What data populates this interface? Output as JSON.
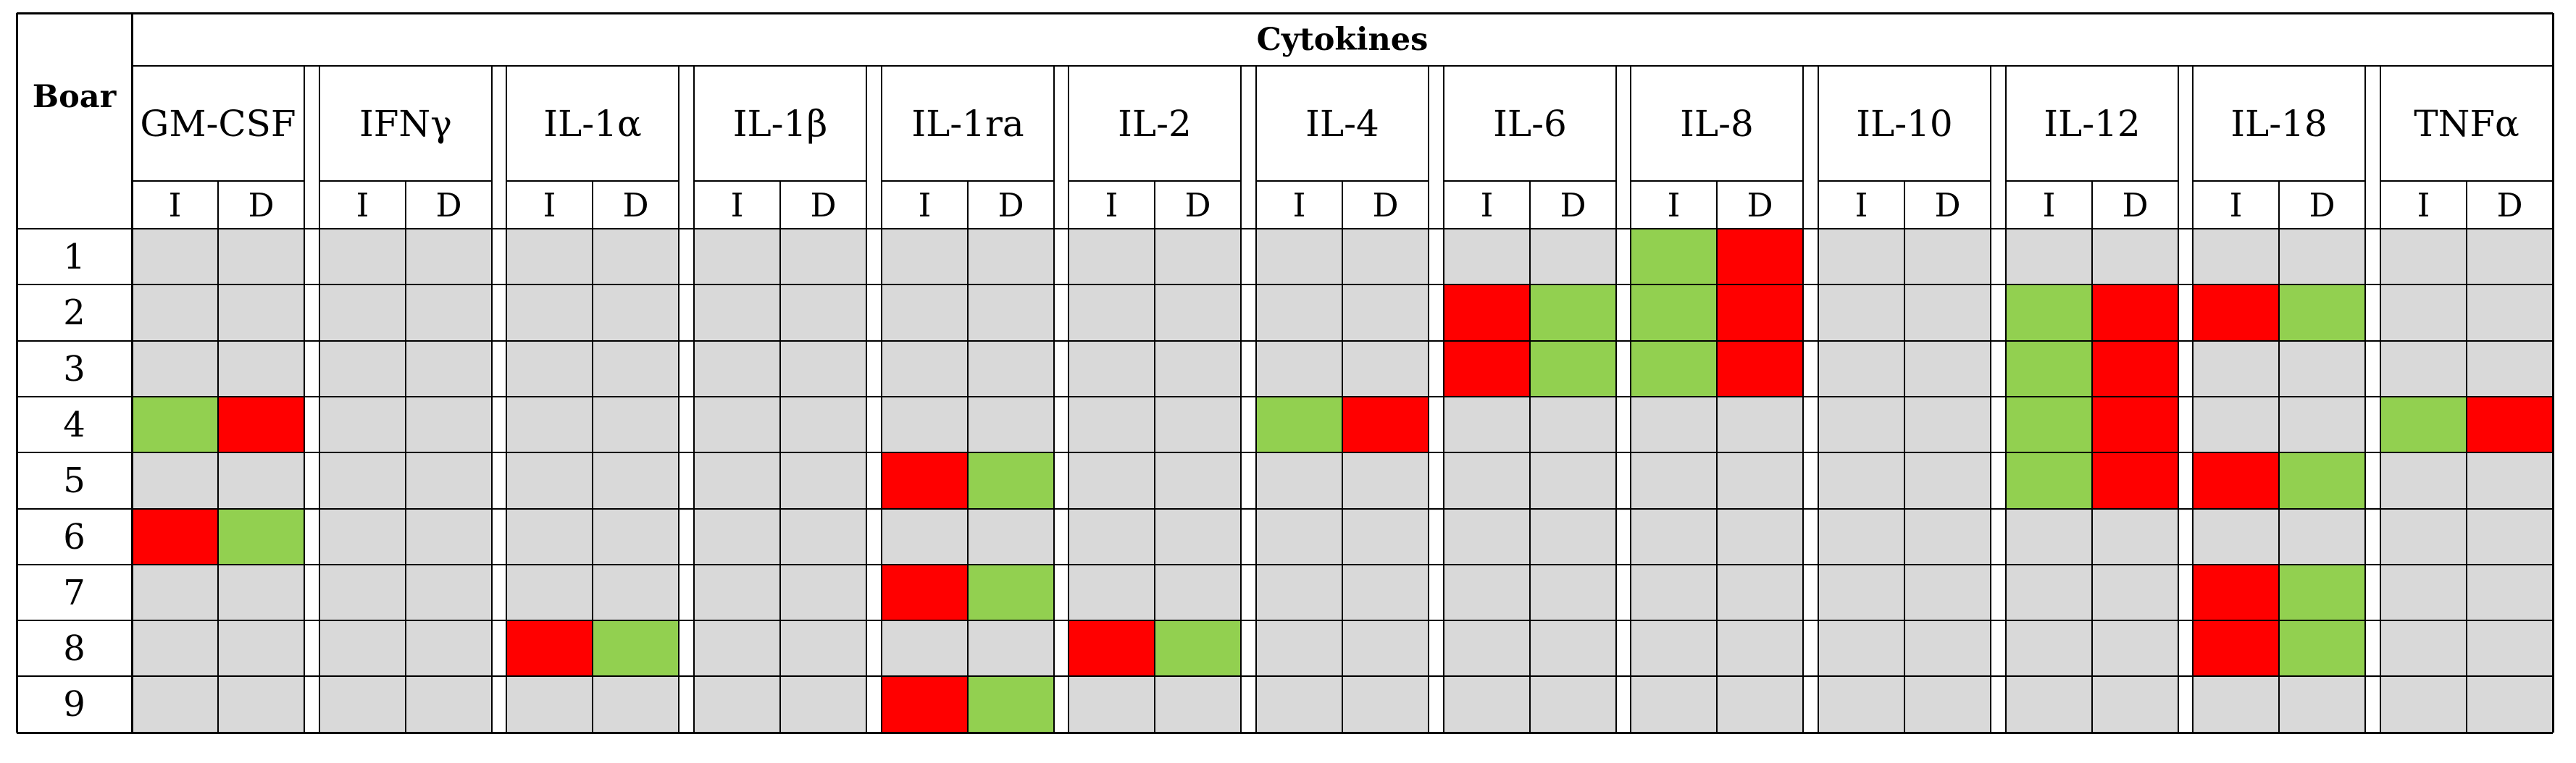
{
  "table": {
    "group_header": "Cytokines",
    "row_header": "Boar",
    "sub_headers": [
      "I",
      "D"
    ],
    "cytokines": [
      "GM-CSF",
      "IFNγ",
      "IL-1α",
      "IL-1β",
      "IL-1ra",
      "IL-2",
      "IL-4",
      "IL-6",
      "IL-8",
      "IL-10",
      "IL-12",
      "IL-18",
      "TNFα"
    ],
    "boars": [
      "1",
      "2",
      "3",
      "4",
      "5",
      "6",
      "7",
      "8",
      "9"
    ],
    "cell_codes": {
      "0": "no change",
      "1": "increase (green)",
      "2": "decrease (red)"
    },
    "colors": {
      "0": "#d9d9d9",
      "1": "#92d050",
      "2": "#ff0000",
      "1b": "#7fc241"
    },
    "cells": [
      [
        0,
        0,
        0,
        0,
        0,
        0,
        0,
        0,
        0,
        0,
        0,
        0,
        0,
        0,
        0,
        0,
        1,
        2,
        0,
        0,
        0,
        0,
        0,
        0,
        0,
        0
      ],
      [
        0,
        0,
        0,
        0,
        0,
        0,
        0,
        0,
        0,
        0,
        0,
        0,
        0,
        0,
        2,
        1,
        1,
        2,
        0,
        0,
        1,
        2,
        2,
        1,
        0,
        0
      ],
      [
        0,
        0,
        0,
        0,
        0,
        0,
        0,
        0,
        0,
        0,
        0,
        0,
        0,
        0,
        2,
        1,
        1,
        2,
        0,
        0,
        1,
        2,
        0,
        0,
        0,
        0
      ],
      [
        1,
        2,
        0,
        0,
        0,
        0,
        0,
        0,
        0,
        0,
        0,
        0,
        1,
        2,
        0,
        0,
        0,
        0,
        0,
        0,
        1,
        2,
        0,
        0,
        1,
        2
      ],
      [
        0,
        0,
        0,
        0,
        0,
        0,
        0,
        0,
        2,
        1,
        0,
        0,
        0,
        0,
        0,
        0,
        0,
        0,
        0,
        0,
        1,
        2,
        2,
        1,
        0,
        0
      ],
      [
        2,
        1,
        0,
        0,
        0,
        0,
        0,
        0,
        0,
        0,
        0,
        0,
        0,
        0,
        0,
        0,
        0,
        0,
        0,
        0,
        0,
        0,
        0,
        0,
        0,
        0
      ],
      [
        0,
        0,
        0,
        0,
        0,
        0,
        0,
        0,
        2,
        1,
        0,
        0,
        0,
        0,
        0,
        0,
        0,
        0,
        0,
        0,
        0,
        0,
        2,
        1,
        0,
        0
      ],
      [
        0,
        0,
        0,
        0,
        2,
        1,
        0,
        0,
        0,
        0,
        2,
        1,
        0,
        0,
        0,
        0,
        0,
        0,
        0,
        0,
        0,
        0,
        2,
        1,
        0,
        0
      ],
      [
        0,
        0,
        0,
        0,
        0,
        0,
        0,
        0,
        2,
        1,
        0,
        0,
        0,
        0,
        0,
        0,
        0,
        0,
        0,
        0,
        0,
        0,
        0,
        0,
        0,
        0
      ]
    ]
  }
}
